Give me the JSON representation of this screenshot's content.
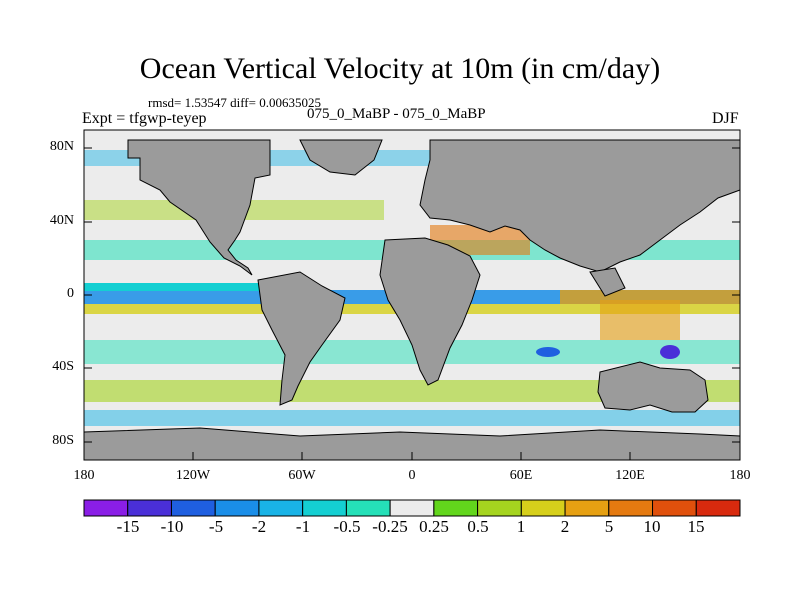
{
  "title": "Ocean Vertical Velocity at 10m (in cm/day)",
  "stats": "rmsd= 1.53547 diff= 0.00635025",
  "experiment": "Expt = tfgwp-teyep",
  "run_label": "075_0_MaBP - 075_0_MaBP",
  "season": "DJF",
  "axes": {
    "lat_ticks": [
      "80N",
      "40N",
      "0",
      "40S",
      "80S"
    ],
    "lon_ticks": [
      "180",
      "120W",
      "60W",
      "0",
      "60E",
      "120E",
      "180"
    ]
  },
  "colorbar": {
    "labels": [
      "-15",
      "-10",
      "-5",
      "-2",
      "-1",
      "-0.5",
      "-0.25",
      "0.25",
      "0.5",
      "1",
      "2",
      "5",
      "10",
      "15"
    ],
    "colors": [
      "#8a1ee6",
      "#4a2fd8",
      "#1f5fe0",
      "#1a8ee8",
      "#19b3e6",
      "#14cfd2",
      "#25e0b8",
      "#ececec",
      "#62d61c",
      "#a5d41f",
      "#d6cf1b",
      "#e6a012",
      "#e57a10",
      "#e0500c",
      "#d82a0e"
    ]
  },
  "colors": {
    "land": "#9b9b9b",
    "background": "#ececec",
    "frame": "#000000"
  }
}
